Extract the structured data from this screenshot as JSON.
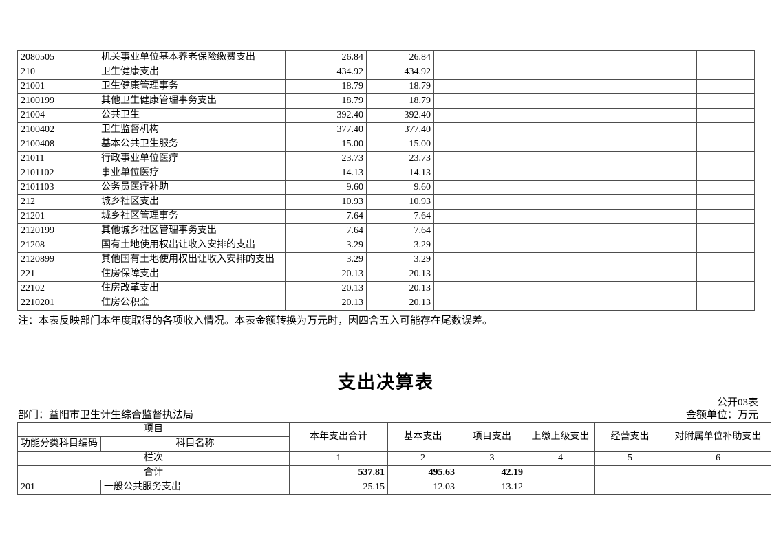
{
  "page": {
    "note": "注：本表反映部门本年度取得的各项收入情况。本表金额转换为万元时，因四舍五入可能存在尾数误差。",
    "title": "支出决算表",
    "table_no": "公开03表",
    "department_label": "部门：益阳市卫生计生综合监督执法局",
    "unit_label": "金额单位：万元"
  },
  "income_table": {
    "rows": [
      {
        "code": "2080505",
        "name": "机关事业单位基本养老保险缴费支出",
        "values": [
          "26.84",
          "26.84",
          "",
          "",
          "",
          "",
          ""
        ]
      },
      {
        "code": "210",
        "name": "卫生健康支出",
        "values": [
          "434.92",
          "434.92",
          "",
          "",
          "",
          "",
          ""
        ]
      },
      {
        "code": "21001",
        "name": "卫生健康管理事务",
        "values": [
          "18.79",
          "18.79",
          "",
          "",
          "",
          "",
          ""
        ]
      },
      {
        "code": "2100199",
        "name": "其他卫生健康管理事务支出",
        "values": [
          "18.79",
          "18.79",
          "",
          "",
          "",
          "",
          ""
        ]
      },
      {
        "code": "21004",
        "name": "公共卫生",
        "values": [
          "392.40",
          "392.40",
          "",
          "",
          "",
          "",
          ""
        ]
      },
      {
        "code": "2100402",
        "name": "卫生监督机构",
        "values": [
          "377.40",
          "377.40",
          "",
          "",
          "",
          "",
          ""
        ]
      },
      {
        "code": "2100408",
        "name": "基本公共卫生服务",
        "values": [
          "15.00",
          "15.00",
          "",
          "",
          "",
          "",
          ""
        ]
      },
      {
        "code": "21011",
        "name": "行政事业单位医疗",
        "values": [
          "23.73",
          "23.73",
          "",
          "",
          "",
          "",
          ""
        ]
      },
      {
        "code": "2101102",
        "name": "事业单位医疗",
        "values": [
          "14.13",
          "14.13",
          "",
          "",
          "",
          "",
          ""
        ]
      },
      {
        "code": "2101103",
        "name": "公务员医疗补助",
        "values": [
          "9.60",
          "9.60",
          "",
          "",
          "",
          "",
          ""
        ]
      },
      {
        "code": "212",
        "name": "城乡社区支出",
        "values": [
          "10.93",
          "10.93",
          "",
          "",
          "",
          "",
          ""
        ]
      },
      {
        "code": "21201",
        "name": "城乡社区管理事务",
        "values": [
          "7.64",
          "7.64",
          "",
          "",
          "",
          "",
          ""
        ]
      },
      {
        "code": "2120199",
        "name": "其他城乡社区管理事务支出",
        "values": [
          "7.64",
          "7.64",
          "",
          "",
          "",
          "",
          ""
        ]
      },
      {
        "code": "21208",
        "name": "国有土地使用权出让收入安排的支出",
        "values": [
          "3.29",
          "3.29",
          "",
          "",
          "",
          "",
          ""
        ]
      },
      {
        "code": "2120899",
        "name": "其他国有土地使用权出让收入安排的支出",
        "values": [
          "3.29",
          "3.29",
          "",
          "",
          "",
          "",
          ""
        ]
      },
      {
        "code": "221",
        "name": "住房保障支出",
        "values": [
          "20.13",
          "20.13",
          "",
          "",
          "",
          "",
          ""
        ]
      },
      {
        "code": "22102",
        "name": "住房改革支出",
        "values": [
          "20.13",
          "20.13",
          "",
          "",
          "",
          "",
          ""
        ]
      },
      {
        "code": "2210201",
        "name": "住房公积金",
        "values": [
          "20.13",
          "20.13",
          "",
          "",
          "",
          "",
          ""
        ]
      }
    ]
  },
  "expenditure_table": {
    "header": {
      "project": "项目",
      "code_label": "功能分类科目编码",
      "name_label": "科目名称",
      "columns": [
        "本年支出合计",
        "基本支出",
        "项目支出",
        "上缴上级支出",
        "经营支出",
        "对附属单位补助支出"
      ],
      "lanci_label": "栏次",
      "lanci_numbers": [
        "1",
        "2",
        "3",
        "4",
        "5",
        "6"
      ]
    },
    "total_row": {
      "label": "合计",
      "values": [
        "537.81",
        "495.63",
        "42.19",
        "",
        "",
        ""
      ]
    },
    "rows": [
      {
        "code": "201",
        "name": "一般公共服务支出",
        "values": [
          "25.15",
          "12.03",
          "13.12",
          "",
          "",
          ""
        ]
      }
    ]
  }
}
